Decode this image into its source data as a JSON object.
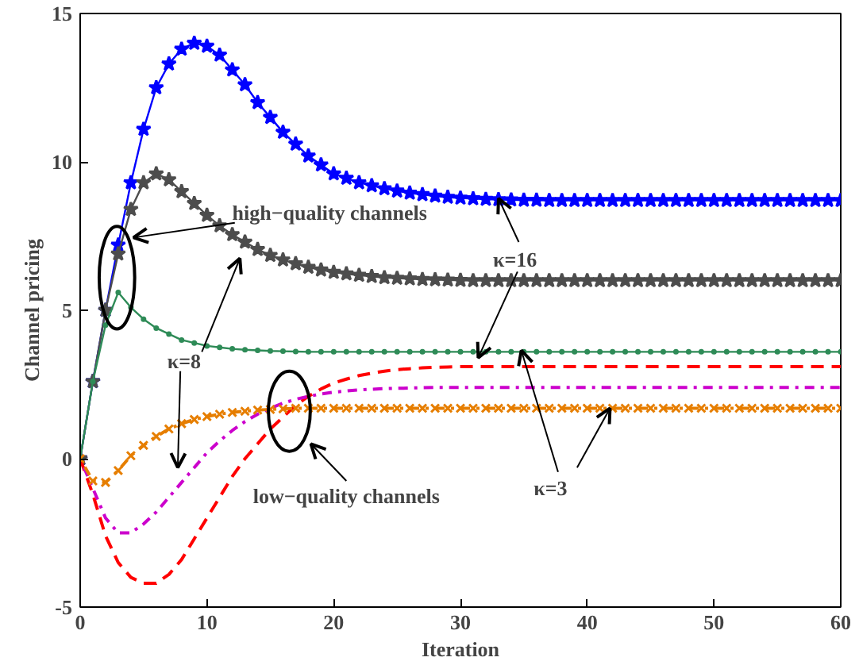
{
  "chart_data": {
    "type": "line",
    "xlabel": "Iteration",
    "ylabel": "Channel pricing",
    "x": [
      0,
      1,
      2,
      3,
      4,
      5,
      6,
      7,
      8,
      9,
      10,
      11,
      12,
      13,
      14,
      15,
      16,
      17,
      18,
      19,
      20,
      21,
      22,
      23,
      24,
      25,
      26,
      27,
      28,
      29,
      30,
      31,
      32,
      33,
      34,
      35,
      36,
      37,
      38,
      39,
      40,
      41,
      42,
      43,
      44,
      45,
      46,
      47,
      48,
      49,
      50,
      51,
      52,
      53,
      54,
      55,
      56,
      57,
      58,
      59,
      60
    ],
    "xlim": [
      0,
      60
    ],
    "ylim": [
      -5,
      15
    ],
    "xticks": [
      0,
      10,
      20,
      30,
      40,
      50,
      60
    ],
    "yticks": [
      -5,
      0,
      5,
      10,
      15
    ],
    "grid": false,
    "series": [
      {
        "color": "#0000ff",
        "marker": "star",
        "line_style": "solid",
        "values": [
          0,
          2.6,
          5,
          7.2,
          9.3,
          11.1,
          12.5,
          13.3,
          13.8,
          14.0,
          13.9,
          13.6,
          13.1,
          12.6,
          12.0,
          11.5,
          11.0,
          10.6,
          10.2,
          9.9,
          9.6,
          9.45,
          9.3,
          9.2,
          9.1,
          9.02,
          8.95,
          8.9,
          8.85,
          8.81,
          8.78,
          8.76,
          8.74,
          8.73,
          8.72,
          8.71,
          8.71,
          8.7,
          8.7,
          8.7,
          8.7,
          8.7,
          8.7,
          8.7,
          8.7,
          8.7,
          8.7,
          8.7,
          8.7,
          8.7,
          8.7,
          8.7,
          8.7,
          8.7,
          8.7,
          8.7,
          8.7,
          8.7,
          8.7,
          8.7,
          8.7
        ]
      },
      {
        "color": "#4d4d4d",
        "marker": "star",
        "line_style": "solid",
        "values": [
          0,
          2.6,
          5,
          6.9,
          8.4,
          9.3,
          9.6,
          9.4,
          9.0,
          8.6,
          8.2,
          7.85,
          7.55,
          7.3,
          7.05,
          6.85,
          6.7,
          6.57,
          6.45,
          6.36,
          6.28,
          6.23,
          6.18,
          6.14,
          6.1,
          6.08,
          6.06,
          6.04,
          6.03,
          6.02,
          6.01,
          6.0,
          6.0,
          6.0,
          6.0,
          6.0,
          6.0,
          6.0,
          6.0,
          6.0,
          6.0,
          6.0,
          6.0,
          6.0,
          6.0,
          6.0,
          6.0,
          6.0,
          6.0,
          6.0,
          6.0,
          6.0,
          6.0,
          6.0,
          6.0,
          6.0,
          6.0,
          6.0,
          6.0,
          6.0,
          6.0
        ]
      },
      {
        "color": "#2e8b57",
        "marker": "circle",
        "line_style": "solid",
        "values": [
          0,
          2.6,
          4.5,
          5.6,
          5.1,
          4.7,
          4.4,
          4.2,
          4.0,
          3.9,
          3.8,
          3.75,
          3.7,
          3.67,
          3.65,
          3.63,
          3.62,
          3.61,
          3.6,
          3.6,
          3.6,
          3.6,
          3.6,
          3.6,
          3.6,
          3.6,
          3.6,
          3.6,
          3.6,
          3.6,
          3.6,
          3.6,
          3.6,
          3.6,
          3.6,
          3.6,
          3.6,
          3.6,
          3.6,
          3.6,
          3.6,
          3.6,
          3.6,
          3.6,
          3.6,
          3.6,
          3.6,
          3.6,
          3.6,
          3.6,
          3.6,
          3.6,
          3.6,
          3.6,
          3.6,
          3.6,
          3.6,
          3.6,
          3.6,
          3.6,
          3.6
        ]
      },
      {
        "color": "#ff0000",
        "marker": "none",
        "line_style": "dashed",
        "values": [
          0,
          -1.2,
          -2.6,
          -3.5,
          -4.0,
          -4.2,
          -4.2,
          -3.9,
          -3.4,
          -2.7,
          -2.0,
          -1.3,
          -0.6,
          0.0,
          0.5,
          1.0,
          1.4,
          1.8,
          2.1,
          2.35,
          2.55,
          2.68,
          2.8,
          2.88,
          2.95,
          3.0,
          3.03,
          3.06,
          3.08,
          3.09,
          3.1,
          3.1,
          3.1,
          3.1,
          3.1,
          3.1,
          3.1,
          3.1,
          3.1,
          3.1,
          3.1,
          3.1,
          3.1,
          3.1,
          3.1,
          3.1,
          3.1,
          3.1,
          3.1,
          3.1,
          3.1,
          3.1,
          3.1,
          3.1,
          3.1,
          3.1,
          3.1,
          3.1,
          3.1,
          3.1,
          3.1
        ]
      },
      {
        "color": "#cc00cc",
        "marker": "none",
        "line_style": "dotted",
        "values": [
          0,
          -1.0,
          -2.0,
          -2.5,
          -2.5,
          -2.2,
          -1.8,
          -1.3,
          -0.8,
          -0.3,
          0.2,
          0.6,
          0.95,
          1.25,
          1.5,
          1.7,
          1.87,
          2.0,
          2.1,
          2.18,
          2.24,
          2.28,
          2.32,
          2.34,
          2.36,
          2.37,
          2.38,
          2.39,
          2.4,
          2.4,
          2.4,
          2.4,
          2.4,
          2.4,
          2.4,
          2.4,
          2.4,
          2.4,
          2.4,
          2.4,
          2.4,
          2.4,
          2.4,
          2.4,
          2.4,
          2.4,
          2.4,
          2.4,
          2.4,
          2.4,
          2.4,
          2.4,
          2.4,
          2.4,
          2.4,
          2.4,
          2.4,
          2.4,
          2.4,
          2.4,
          2.4
        ]
      },
      {
        "color": "#e67e00",
        "marker": "cross",
        "line_style": "dotted",
        "values": [
          0,
          -0.75,
          -0.8,
          -0.4,
          0.1,
          0.45,
          0.75,
          1.0,
          1.18,
          1.32,
          1.42,
          1.5,
          1.56,
          1.6,
          1.64,
          1.66,
          1.68,
          1.7,
          1.7,
          1.7,
          1.7,
          1.7,
          1.7,
          1.7,
          1.7,
          1.7,
          1.7,
          1.7,
          1.7,
          1.7,
          1.7,
          1.7,
          1.7,
          1.7,
          1.7,
          1.7,
          1.7,
          1.7,
          1.7,
          1.7,
          1.7,
          1.7,
          1.7,
          1.7,
          1.7,
          1.7,
          1.7,
          1.7,
          1.7,
          1.7,
          1.7,
          1.7,
          1.7,
          1.7,
          1.7,
          1.7,
          1.7,
          1.7,
          1.7,
          1.7,
          1.7
        ]
      }
    ],
    "annotations": [
      "high−quality channels",
      "κ=8",
      {
        "text": "κ=16",
        "x": 33.0,
        "y": 8.77
      },
      {
        "text": "κ=3",
        "x": 41.8,
        "y": 1.7
      },
      "low−quality channels"
    ]
  }
}
